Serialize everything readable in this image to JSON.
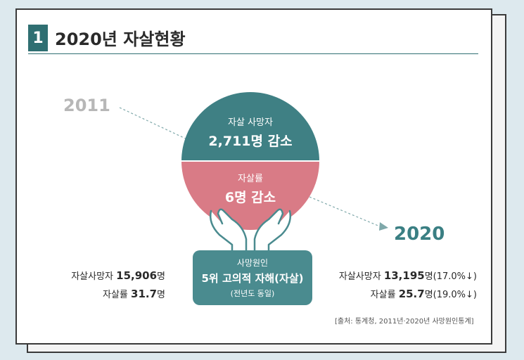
{
  "title": {
    "number": "1",
    "text": "2020년 자살현황"
  },
  "years": {
    "start": "2011",
    "end": "2020"
  },
  "circle_top": {
    "label": "자살 사망자",
    "value": "2,711명 감소"
  },
  "circle_bottom": {
    "label": "자살률",
    "value": "6명 감소"
  },
  "cause": {
    "label": "사망원인",
    "value": "5위 고의적 자해(자살)",
    "note": "(전년도 동일)"
  },
  "stats_2011": {
    "deaths_label": "자살사망자",
    "deaths_value": "15,906",
    "deaths_unit": "명",
    "rate_label": "자살률",
    "rate_value": "31.7",
    "rate_unit": "명"
  },
  "stats_2020": {
    "deaths_label": "자살사망자",
    "deaths_value": "13,195",
    "deaths_unit": "명(17.0%↓)",
    "rate_label": "자살률",
    "rate_value": "25.7",
    "rate_unit": "명(19.0%↓)"
  },
  "source": "[출처: 통계청, 2011년·2020년 사망원인통계]",
  "colors": {
    "teal": "#3f8084",
    "pink": "#d97b86",
    "hands": "#4a8b8f"
  }
}
